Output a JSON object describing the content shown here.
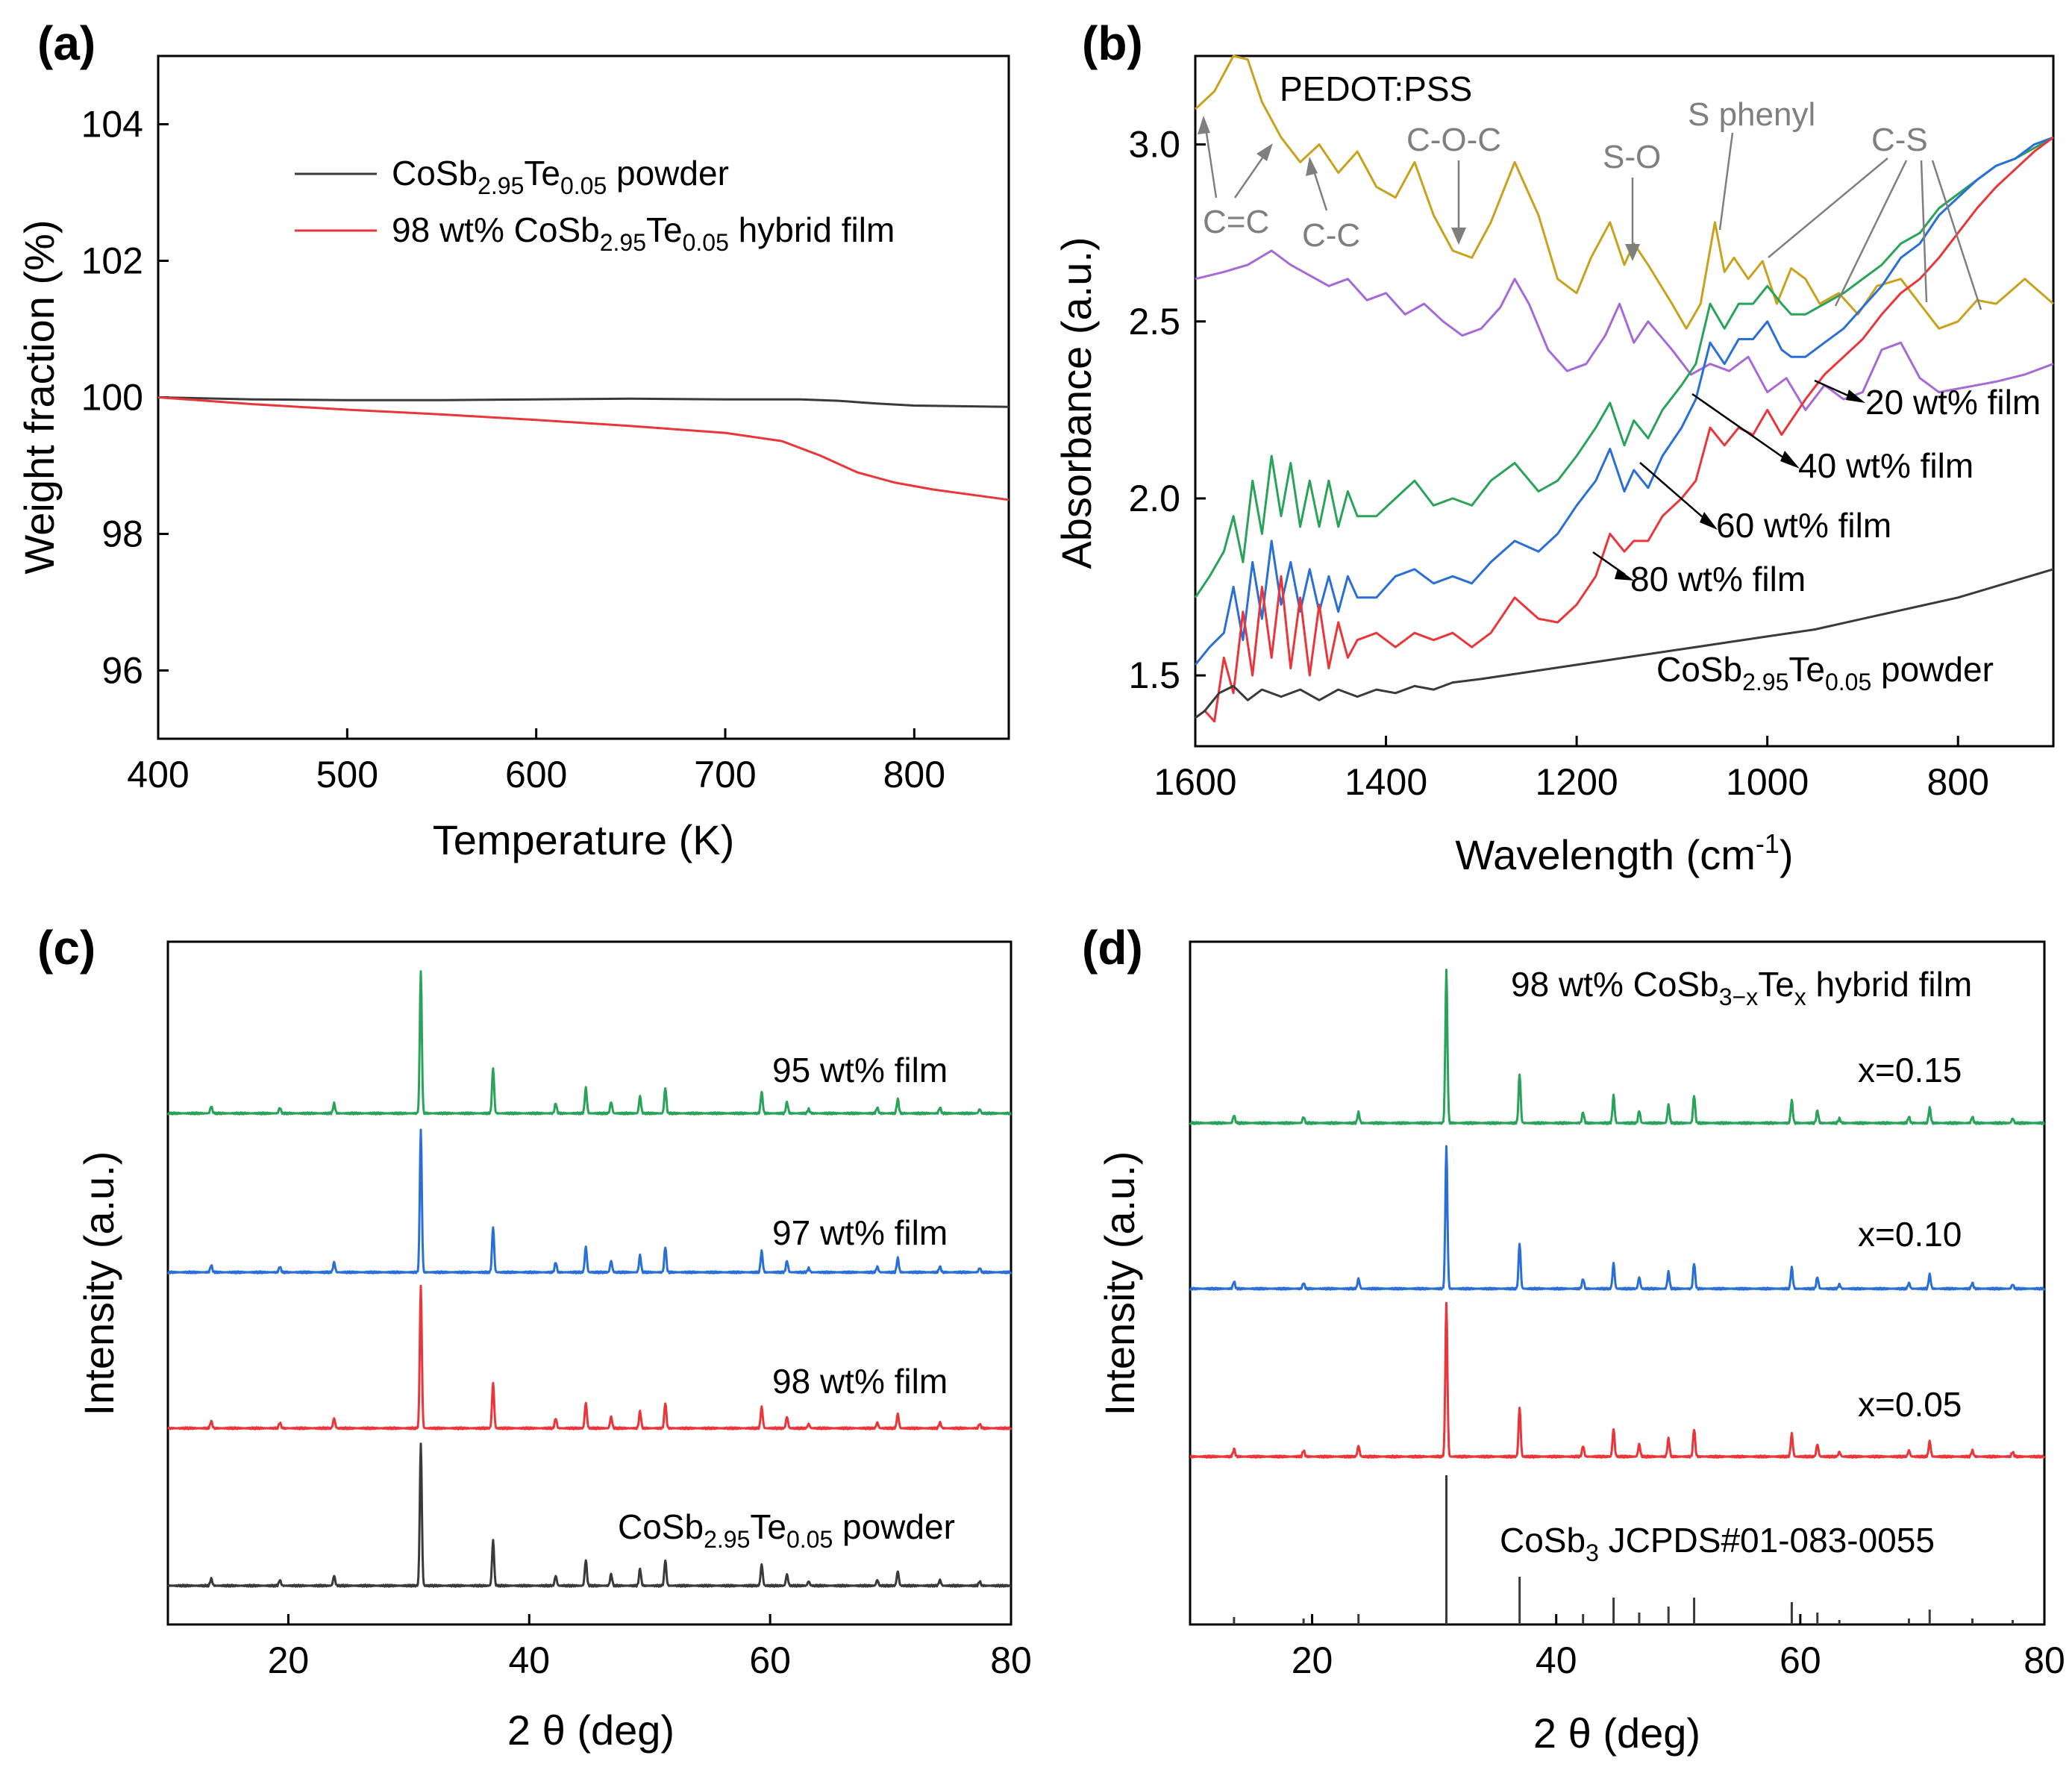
{
  "colors": {
    "black": "#3a3a3a",
    "red": "#e8363b",
    "blue": "#2a6fd6",
    "green": "#2aa35a",
    "orange": "#c9a21d",
    "purple": "#a66ad6",
    "gray": "#808080"
  },
  "chart_data": [
    {
      "panel": "(a)",
      "type": "line",
      "xlabel": "Temperature (K)",
      "ylabel": "Weight fraction (%)",
      "xlim": [
        400,
        850
      ],
      "ylim": [
        95,
        105
      ],
      "xticks": [
        400,
        500,
        600,
        700,
        800
      ],
      "yticks": [
        96,
        98,
        100,
        102,
        104
      ],
      "series": [
        {
          "name": "CoSb",
          "legend": {
            "base": "CoSb",
            "sub1": "2.95",
            "mid": "Te",
            "sub2": "0.05",
            "tail": " powder",
            "prefix": ""
          },
          "color": "black",
          "x": [
            400,
            450,
            500,
            550,
            600,
            650,
            700,
            740,
            760,
            780,
            800,
            850
          ],
          "y": [
            100.0,
            99.97,
            99.96,
            99.96,
            99.97,
            99.98,
            99.97,
            99.97,
            99.95,
            99.91,
            99.88,
            99.86
          ]
        },
        {
          "name": "hybrid",
          "legend": {
            "prefix": "98 wt% ",
            "base": "CoSb",
            "sub1": "2.95",
            "mid": "Te",
            "sub2": "0.05",
            "tail": " hybrid film"
          },
          "color": "red",
          "x": [
            400,
            450,
            500,
            550,
            600,
            650,
            700,
            730,
            750,
            770,
            790,
            810,
            850
          ],
          "y": [
            100.0,
            99.9,
            99.82,
            99.75,
            99.67,
            99.58,
            99.48,
            99.36,
            99.15,
            98.9,
            98.75,
            98.65,
            98.5
          ]
        }
      ]
    },
    {
      "panel": "(b)",
      "type": "line",
      "xlabel_base": "Wavelength (cm",
      "xlabel_sup": "-1",
      "xlabel_tail": ")",
      "ylabel": "Absorbance (a.u.)",
      "xlim": [
        1600,
        700
      ],
      "ylim": [
        1.3,
        3.25
      ],
      "xticks": [
        1600,
        1400,
        1200,
        1000,
        800
      ],
      "yticks": [
        1.5,
        2.0,
        2.5,
        3.0
      ],
      "series": [
        {
          "name": "PEDOT:PSS",
          "color": "orange",
          "x": [
            1600,
            1580,
            1560,
            1545,
            1530,
            1510,
            1490,
            1470,
            1450,
            1430,
            1410,
            1390,
            1370,
            1350,
            1330,
            1310,
            1290,
            1265,
            1240,
            1220,
            1200,
            1185,
            1165,
            1150,
            1140,
            1125,
            1100,
            1085,
            1070,
            1055,
            1045,
            1035,
            1020,
            1005,
            990,
            975,
            960,
            945,
            925,
            905,
            885,
            860,
            840,
            820,
            800,
            780,
            760,
            730,
            700
          ],
          "y": [
            3.1,
            3.15,
            3.25,
            3.24,
            3.12,
            3.02,
            2.95,
            3.0,
            2.92,
            2.98,
            2.88,
            2.85,
            2.95,
            2.8,
            2.7,
            2.68,
            2.78,
            2.95,
            2.8,
            2.62,
            2.58,
            2.68,
            2.78,
            2.66,
            2.72,
            2.66,
            2.55,
            2.48,
            2.55,
            2.78,
            2.64,
            2.68,
            2.62,
            2.67,
            2.55,
            2.65,
            2.62,
            2.55,
            2.58,
            2.52,
            2.6,
            2.62,
            2.55,
            2.48,
            2.5,
            2.56,
            2.55,
            2.62,
            2.55
          ]
        },
        {
          "name": "20 wt% film",
          "color": "purple",
          "x": [
            1600,
            1570,
            1545,
            1520,
            1500,
            1480,
            1460,
            1440,
            1420,
            1400,
            1380,
            1360,
            1340,
            1320,
            1300,
            1280,
            1265,
            1250,
            1230,
            1210,
            1190,
            1170,
            1155,
            1140,
            1125,
            1100,
            1080,
            1060,
            1040,
            1020,
            1000,
            980,
            960,
            940,
            920,
            900,
            880,
            860,
            840,
            820,
            800,
            780,
            760,
            730,
            700
          ],
          "y": [
            2.62,
            2.64,
            2.66,
            2.7,
            2.66,
            2.63,
            2.6,
            2.62,
            2.56,
            2.58,
            2.52,
            2.55,
            2.5,
            2.46,
            2.48,
            2.54,
            2.62,
            2.55,
            2.42,
            2.36,
            2.38,
            2.46,
            2.55,
            2.44,
            2.5,
            2.42,
            2.35,
            2.38,
            2.36,
            2.4,
            2.3,
            2.34,
            2.25,
            2.32,
            2.28,
            2.3,
            2.42,
            2.44,
            2.34,
            2.3,
            2.31,
            2.32,
            2.33,
            2.35,
            2.38
          ]
        },
        {
          "name": "40 wt% film",
          "color": "green",
          "x": [
            1600,
            1585,
            1570,
            1560,
            1550,
            1540,
            1530,
            1520,
            1510,
            1500,
            1490,
            1480,
            1470,
            1460,
            1450,
            1440,
            1430,
            1410,
            1390,
            1370,
            1350,
            1330,
            1310,
            1290,
            1265,
            1240,
            1220,
            1200,
            1180,
            1165,
            1150,
            1140,
            1125,
            1110,
            1090,
            1075,
            1060,
            1045,
            1030,
            1015,
            1000,
            985,
            975,
            960,
            940,
            920,
            900,
            880,
            860,
            840,
            820,
            800,
            780,
            760,
            740,
            720,
            700
          ],
          "y": [
            1.72,
            1.78,
            1.85,
            1.95,
            1.82,
            2.05,
            1.9,
            2.12,
            1.95,
            2.1,
            1.92,
            2.05,
            1.92,
            2.05,
            1.92,
            2.02,
            1.95,
            1.95,
            2.0,
            2.05,
            1.98,
            2.0,
            1.98,
            2.05,
            2.1,
            2.02,
            2.05,
            2.12,
            2.2,
            2.27,
            2.15,
            2.22,
            2.17,
            2.25,
            2.32,
            2.38,
            2.55,
            2.48,
            2.55,
            2.55,
            2.6,
            2.55,
            2.52,
            2.52,
            2.55,
            2.58,
            2.62,
            2.66,
            2.72,
            2.75,
            2.82,
            2.86,
            2.9,
            2.94,
            2.96,
            2.99,
            3.02
          ]
        },
        {
          "name": "60 wt% film",
          "color": "blue",
          "x": [
            1600,
            1585,
            1570,
            1560,
            1550,
            1540,
            1530,
            1520,
            1510,
            1500,
            1490,
            1480,
            1470,
            1460,
            1450,
            1440,
            1430,
            1410,
            1390,
            1370,
            1350,
            1330,
            1310,
            1290,
            1265,
            1240,
            1220,
            1200,
            1180,
            1165,
            1150,
            1140,
            1125,
            1110,
            1090,
            1075,
            1060,
            1045,
            1030,
            1015,
            1000,
            985,
            975,
            960,
            940,
            920,
            900,
            880,
            860,
            840,
            820,
            800,
            780,
            760,
            740,
            720,
            700
          ],
          "y": [
            1.53,
            1.58,
            1.62,
            1.75,
            1.6,
            1.82,
            1.66,
            1.88,
            1.7,
            1.82,
            1.68,
            1.8,
            1.68,
            1.78,
            1.68,
            1.78,
            1.72,
            1.72,
            1.78,
            1.8,
            1.76,
            1.78,
            1.76,
            1.82,
            1.88,
            1.85,
            1.9,
            1.98,
            2.05,
            2.14,
            2.02,
            2.08,
            2.03,
            2.12,
            2.2,
            2.28,
            2.44,
            2.38,
            2.45,
            2.45,
            2.5,
            2.42,
            2.4,
            2.4,
            2.44,
            2.48,
            2.54,
            2.6,
            2.68,
            2.72,
            2.8,
            2.85,
            2.9,
            2.94,
            2.96,
            3.0,
            3.02
          ]
        },
        {
          "name": "80 wt% film",
          "color": "red",
          "x": [
            1600,
            1590,
            1580,
            1570,
            1560,
            1550,
            1540,
            1530,
            1520,
            1510,
            1500,
            1490,
            1480,
            1470,
            1460,
            1450,
            1440,
            1430,
            1410,
            1390,
            1370,
            1350,
            1330,
            1310,
            1290,
            1265,
            1240,
            1220,
            1200,
            1180,
            1165,
            1150,
            1140,
            1125,
            1110,
            1090,
            1075,
            1060,
            1045,
            1030,
            1015,
            1000,
            985,
            975,
            960,
            940,
            920,
            900,
            880,
            860,
            840,
            820,
            800,
            780,
            760,
            740,
            720,
            700
          ],
          "y": [
            1.38,
            1.4,
            1.37,
            1.55,
            1.45,
            1.68,
            1.5,
            1.75,
            1.55,
            1.78,
            1.52,
            1.72,
            1.5,
            1.7,
            1.52,
            1.65,
            1.55,
            1.6,
            1.62,
            1.58,
            1.62,
            1.6,
            1.62,
            1.58,
            1.62,
            1.72,
            1.66,
            1.65,
            1.7,
            1.78,
            1.9,
            1.85,
            1.88,
            1.88,
            1.95,
            2.0,
            2.05,
            2.2,
            2.15,
            2.2,
            2.18,
            2.25,
            2.18,
            2.22,
            2.28,
            2.35,
            2.4,
            2.45,
            2.52,
            2.58,
            2.62,
            2.68,
            2.75,
            2.82,
            2.88,
            2.93,
            2.98,
            3.02
          ]
        },
        {
          "name": "CoSb2.95Te0.05 powder",
          "color": "black",
          "x": [
            1600,
            1590,
            1575,
            1560,
            1545,
            1530,
            1510,
            1490,
            1470,
            1450,
            1430,
            1410,
            1390,
            1370,
            1350,
            1330,
            1300,
            1250,
            1200,
            1150,
            1100,
            1050,
            1000,
            950,
            900,
            850,
            800,
            750,
            700
          ],
          "y": [
            1.38,
            1.4,
            1.45,
            1.47,
            1.43,
            1.46,
            1.44,
            1.46,
            1.43,
            1.46,
            1.44,
            1.46,
            1.45,
            1.47,
            1.46,
            1.48,
            1.49,
            1.51,
            1.53,
            1.55,
            1.57,
            1.59,
            1.61,
            1.63,
            1.66,
            1.69,
            1.72,
            1.76,
            1.8
          ]
        }
      ],
      "labels": [
        "PEDOT:PSS",
        "20 wt% film",
        "40 wt% film",
        "60 wt% film",
        "80 wt% film"
      ],
      "powder_label": {
        "base": "CoSb",
        "sub1": "2.95",
        "mid": "Te",
        "sub2": "0.05",
        "tail": " powder"
      },
      "annotations": [
        "C=C",
        "C-C",
        "C-O-C",
        "S-O",
        "S phenyl",
        "C-S"
      ]
    },
    {
      "panel": "(c)",
      "type": "xrd",
      "xlabel": "2 θ (deg)",
      "ylabel": "Intensity (a.u.)",
      "xlim": [
        10,
        80
      ],
      "xticks": [
        20,
        40,
        60,
        80
      ],
      "peaks": [
        {
          "pos": 13.6,
          "h": 0.05
        },
        {
          "pos": 19.3,
          "h": 0.04
        },
        {
          "pos": 23.8,
          "h": 0.07
        },
        {
          "pos": 31.0,
          "h": 1.0
        },
        {
          "pos": 37.0,
          "h": 0.32
        },
        {
          "pos": 42.2,
          "h": 0.07
        },
        {
          "pos": 44.7,
          "h": 0.18
        },
        {
          "pos": 46.8,
          "h": 0.08
        },
        {
          "pos": 49.2,
          "h": 0.12
        },
        {
          "pos": 51.3,
          "h": 0.18
        },
        {
          "pos": 59.3,
          "h": 0.15
        },
        {
          "pos": 61.4,
          "h": 0.08
        },
        {
          "pos": 63.2,
          "h": 0.03
        },
        {
          "pos": 68.9,
          "h": 0.04
        },
        {
          "pos": 70.6,
          "h": 0.1
        },
        {
          "pos": 74.1,
          "h": 0.04
        },
        {
          "pos": 77.4,
          "h": 0.03
        }
      ],
      "series": [
        {
          "name": "95 wt% film",
          "color": "green"
        },
        {
          "name": "97 wt% film",
          "color": "blue"
        },
        {
          "name": "98 wt% film",
          "color": "red"
        },
        {
          "name": "powder",
          "color": "black",
          "label": {
            "base": "CoSb",
            "sub1": "2.95",
            "mid": "Te",
            "sub2": "0.05",
            "tail": " powder"
          }
        }
      ]
    },
    {
      "panel": "(d)",
      "type": "xrd",
      "xlabel": "2 θ (deg)",
      "ylabel": "Intensity (a.u.)",
      "xlim": [
        10,
        80
      ],
      "xticks": [
        20,
        40,
        60,
        80
      ],
      "title": {
        "prefix": "98 wt% CoSb",
        "sub1": "3−x",
        "mid": "Te",
        "sub2": "x",
        "tail": " hybrid film"
      },
      "series": [
        {
          "name": "x=0.15",
          "color": "green"
        },
        {
          "name": "x=0.10",
          "color": "blue"
        },
        {
          "name": "x=0.05",
          "color": "red"
        }
      ],
      "reference": {
        "base": "CoSb",
        "sub1": "3",
        "tail": "  JCPDS#01-083-0055"
      }
    }
  ]
}
